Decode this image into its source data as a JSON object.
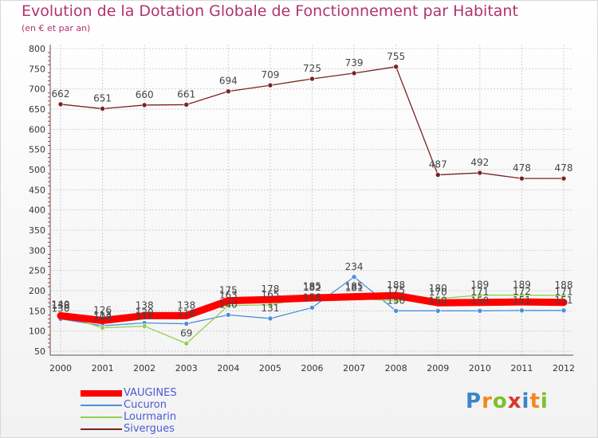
{
  "chart_data": {
    "type": "line",
    "title": "Evolution de la Dotation Globale de Fonctionnement par Habitant",
    "subtitle": "(en € et par an)",
    "x": [
      "2000",
      "2001",
      "2002",
      "2003",
      "2004",
      "2005",
      "2006",
      "2007",
      "2008",
      "2009",
      "2010",
      "2011",
      "2012"
    ],
    "ylim": [
      50,
      800
    ],
    "yticks": [
      50,
      100,
      150,
      200,
      250,
      300,
      350,
      400,
      450,
      500,
      550,
      600,
      650,
      700,
      750,
      800
    ],
    "grid": true,
    "legend_position": "bottom-left",
    "series": [
      {
        "name": "VAUGINES",
        "color": "#ff0000",
        "values": [
          138,
          126,
          138,
          138,
          175,
          178,
          182,
          185,
          188,
          170,
          171,
          172,
          171
        ]
      },
      {
        "name": "Cucuron",
        "color": "#4a90d9",
        "values": [
          130,
          113,
          120,
          118,
          140,
          131,
          158,
          234,
          150,
          150,
          150,
          151,
          151
        ]
      },
      {
        "name": "Lourmarin",
        "color": "#90d050",
        "values": [
          140,
          108,
          112,
          69,
          163,
          165,
          185,
          181,
          175,
          180,
          189,
          189,
          188
        ]
      },
      {
        "name": "Sivergues",
        "color": "#7a2323",
        "values": [
          662,
          651,
          660,
          661,
          694,
          709,
          725,
          739,
          755,
          487,
          492,
          478,
          478
        ]
      }
    ]
  },
  "logo_text": "Proxiti"
}
